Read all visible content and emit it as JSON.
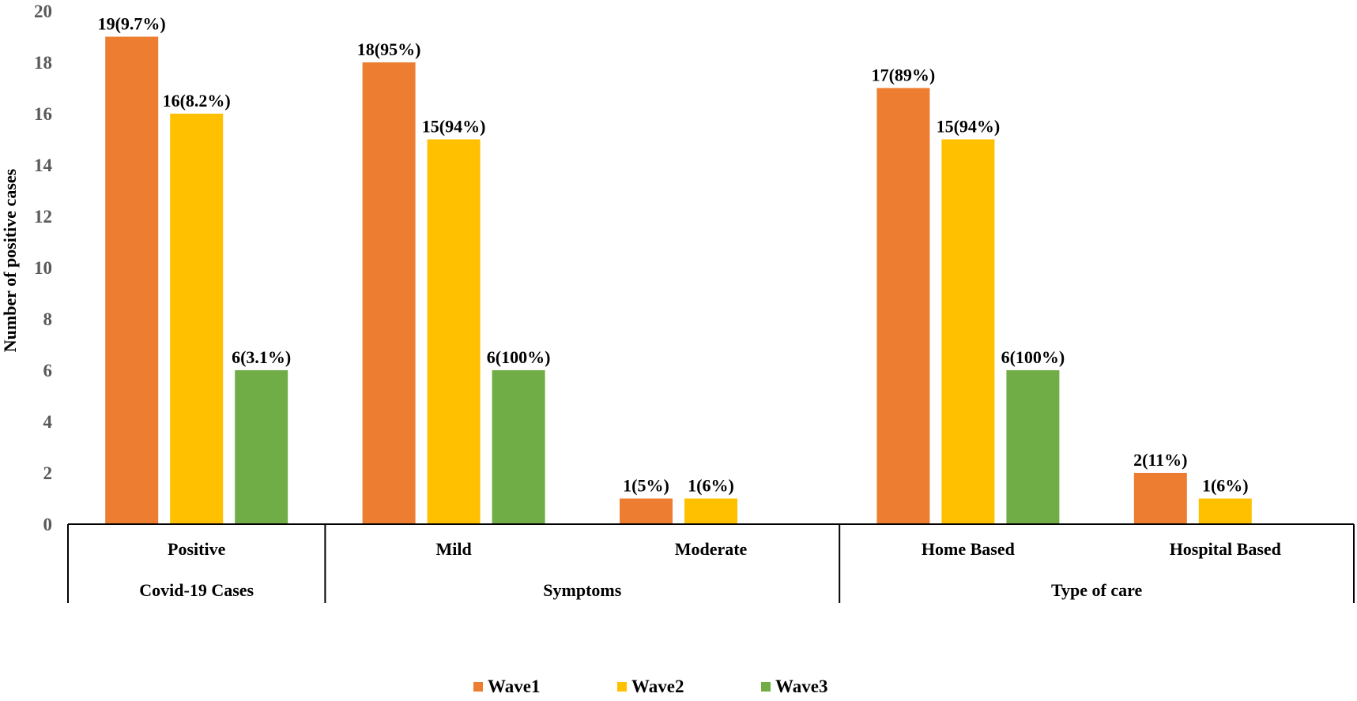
{
  "chart_data": {
    "type": "bar",
    "title": "",
    "xlabel": "",
    "ylabel": "Number of positive cases",
    "ylim": [
      0,
      20
    ],
    "yticks": [
      0,
      2,
      4,
      6,
      8,
      10,
      12,
      14,
      16,
      18,
      20
    ],
    "grid": false,
    "legend_position": "bottom",
    "groups": [
      {
        "label": "Covid-19 Cases",
        "categories": [
          "Positive"
        ]
      },
      {
        "label": "Symptoms",
        "categories": [
          "Mild",
          "Moderate"
        ]
      },
      {
        "label": "Type of care",
        "categories": [
          "Home Based",
          "Hospital Based"
        ]
      }
    ],
    "categories": [
      "Positive",
      "Mild",
      "Moderate",
      "Home Based",
      "Hospital Based"
    ],
    "series": [
      {
        "name": "Wave1",
        "color": "#ED7D31",
        "values": [
          19,
          18,
          1,
          17,
          2
        ],
        "labels": [
          "19(9.7%)",
          "18(95%)",
          "1(5%)",
          "17(89%)",
          "2(11%)"
        ]
      },
      {
        "name": "Wave2",
        "color": "#FFC000",
        "values": [
          16,
          15,
          1,
          15,
          1
        ],
        "labels": [
          "16(8.2%)",
          "15(94%)",
          "1(6%)",
          "15(94%)",
          "1(6%)"
        ]
      },
      {
        "name": "Wave3",
        "color": "#70AD47",
        "values": [
          6,
          6,
          null,
          6,
          null
        ],
        "labels": [
          "6(3.1%)",
          "6(100%)",
          "",
          "6(100%)",
          ""
        ]
      }
    ]
  }
}
